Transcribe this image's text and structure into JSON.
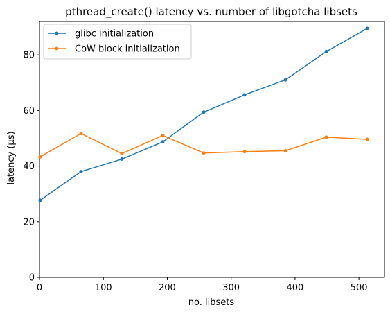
{
  "chart_data": {
    "type": "line",
    "title": "pthread_create() latency vs. number of libgotcha libsets",
    "xlabel": "no. libsets",
    "ylabel": "latency (µs)",
    "xlim": [
      0,
      540
    ],
    "ylim": [
      0,
      92
    ],
    "xticks": [
      0,
      100,
      200,
      300,
      400,
      500
    ],
    "yticks": [
      0,
      20,
      40,
      60,
      80
    ],
    "grid": false,
    "legend_position": "top-left",
    "x": [
      1,
      65,
      129,
      193,
      257,
      321,
      385,
      449,
      513
    ],
    "series": [
      {
        "name": "glibc initialization",
        "color": "#1f77b4",
        "values": [
          27.7,
          38.0,
          42.5,
          48.7,
          59.4,
          65.6,
          71.0,
          81.2,
          89.5
        ]
      },
      {
        "name": "CoW block initialization",
        "color": "#ff7f0e",
        "values": [
          43.3,
          51.7,
          44.5,
          51.0,
          44.7,
          45.2,
          45.5,
          50.4,
          49.6
        ]
      }
    ]
  }
}
